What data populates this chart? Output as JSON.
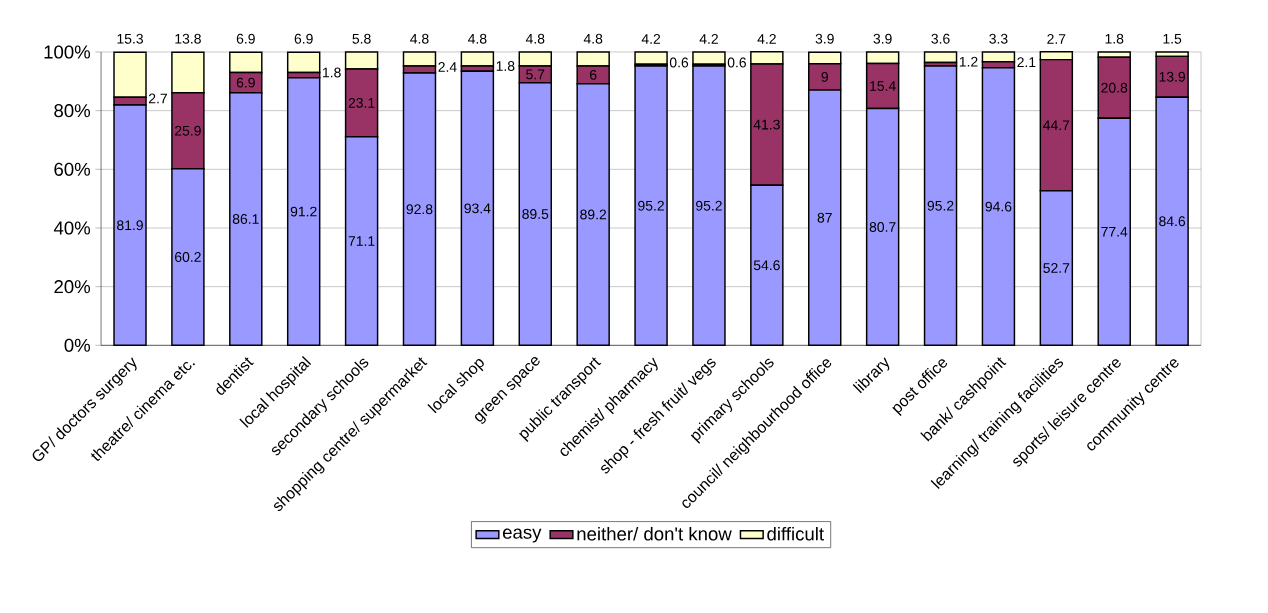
{
  "chart_data": {
    "type": "bar",
    "stacked": true,
    "categories": [
      "GP/ doctors surgery",
      "theatre/ cinema etc.",
      "dentist",
      "local hospital",
      "secondary schools",
      "shopping centre/ supermarket",
      "local shop",
      "green space",
      "public transport",
      "chemist/ pharmacy",
      "shop - fresh fruit/ vegs",
      "primary schools",
      "council/ neighbourhood office",
      "library",
      "post office",
      "bank/ cashpoint",
      "learning/ training facilities",
      "sports/ leisure centre",
      "community centre"
    ],
    "series": [
      {
        "name": "easy",
        "color": "#9999ff",
        "values": [
          81.9,
          60.2,
          86.1,
          91.2,
          71.1,
          92.8,
          93.4,
          89.5,
          89.2,
          95.2,
          95.2,
          54.6,
          87,
          80.7,
          95.2,
          94.6,
          52.7,
          77.4,
          84.6
        ]
      },
      {
        "name": "neither/ don't know",
        "color": "#993366",
        "values": [
          2.7,
          25.9,
          6.9,
          1.8,
          23.1,
          2.4,
          1.8,
          5.7,
          6,
          0.6,
          0.6,
          41.3,
          9,
          15.4,
          1.2,
          2.1,
          44.7,
          20.8,
          13.9
        ]
      },
      {
        "name": "difficult",
        "color": "#ffffcc",
        "values": [
          15.3,
          13.8,
          6.9,
          6.9,
          5.8,
          4.8,
          4.8,
          4.8,
          4.8,
          4.2,
          4.2,
          4.2,
          3.9,
          3.9,
          3.6,
          3.3,
          2.7,
          1.8,
          1.5
        ]
      }
    ],
    "ylim": [
      0,
      100
    ],
    "yticks": [
      {
        "value": 0,
        "label": "0%"
      },
      {
        "value": 20,
        "label": "20%"
      },
      {
        "value": 40,
        "label": "40%"
      },
      {
        "value": 60,
        "label": "60%"
      },
      {
        "value": 80,
        "label": "80%"
      },
      {
        "value": 100,
        "label": "100%"
      }
    ],
    "grid": "y",
    "legend": "bottom",
    "data_labels": true
  }
}
